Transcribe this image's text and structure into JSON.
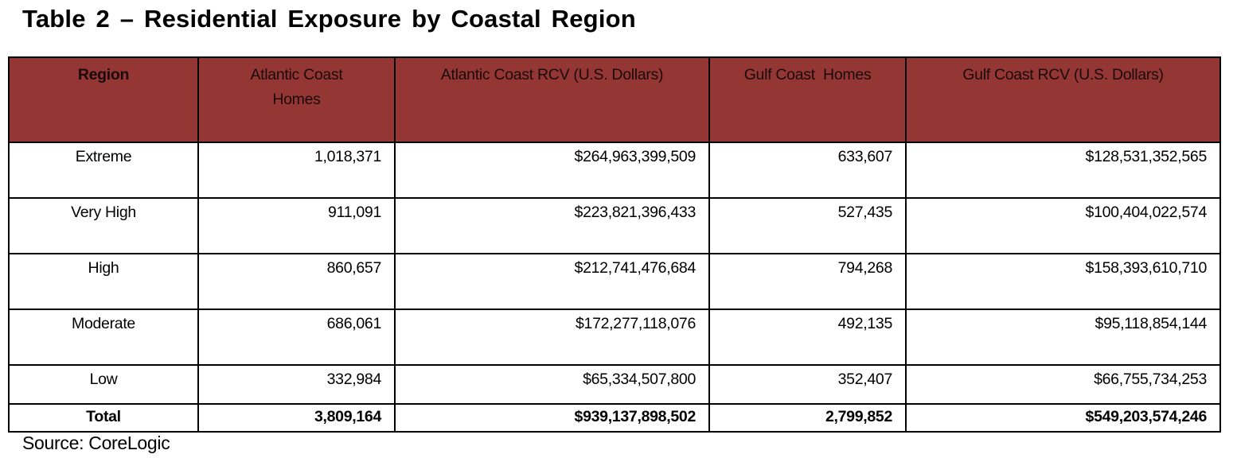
{
  "title": "Table 2 – Residential Exposure by Coastal Region",
  "table": {
    "headers": [
      "Region",
      "Atlantic Coast Homes",
      "Atlantic Coast RCV (U.S. Dollars)",
      "Gulf Coast  Homes",
      "Gulf Coast RCV (U.S. Dollars)"
    ],
    "rows": [
      [
        "Extreme",
        "1,018,371",
        "$264,963,399,509",
        "633,607",
        "$128,531,352,565"
      ],
      [
        "Very High",
        "911,091",
        "$223,821,396,433",
        "527,435",
        "$100,404,022,574"
      ],
      [
        "High",
        "860,657",
        "$212,741,476,684",
        "794,268",
        "$158,393,610,710"
      ],
      [
        "Moderate",
        "686,061",
        "$172,277,118,076",
        "492,135",
        "$95,118,854,144"
      ],
      [
        "Low",
        "332,984",
        "$65,334,507,800",
        "352,407",
        "$66,755,734,253"
      ]
    ],
    "total": [
      "Total",
      "3,809,164",
      "$939,137,898,502",
      "2,799,852",
      "$549,203,574,246"
    ]
  },
  "source": "Source: CoreLogic",
  "colors": {
    "header_bg": "#943634"
  }
}
